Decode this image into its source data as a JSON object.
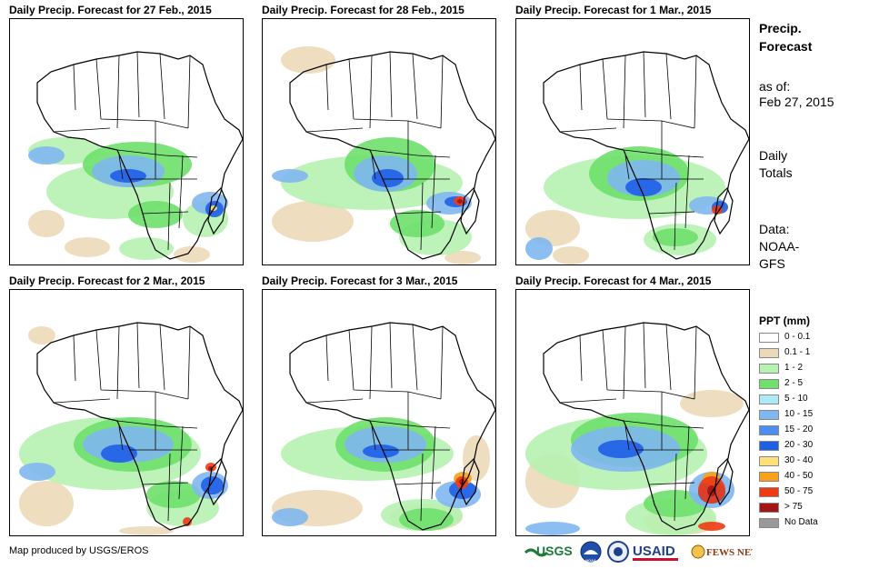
{
  "panels": [
    {
      "title": "Daily Precip. Forecast for 27 Feb., 2015"
    },
    {
      "title": "Daily Precip. Forecast for 28 Feb., 2015"
    },
    {
      "title": "Daily Precip. Forecast for 1 Mar., 2015"
    },
    {
      "title": "Daily Precip. Forecast for 2 Mar., 2015"
    },
    {
      "title": "Daily Precip. Forecast for 3 Mar., 2015"
    },
    {
      "title": "Daily Precip. Forecast for 4 Mar., 2015"
    }
  ],
  "sidebar": {
    "title_line1": "Precip.",
    "title_line2": "Forecast",
    "asof_label": "as of:",
    "asof_date": "Feb 27, 2015",
    "totals_line1": "Daily",
    "totals_line2": "Totals",
    "data_label": "Data:",
    "data_line1": "NOAA-",
    "data_line2": "GFS"
  },
  "legend": {
    "title": "PPT (mm)",
    "items": [
      {
        "label": "0 - 0.1",
        "color": "#ffffff"
      },
      {
        "label": "0.1 - 1",
        "color": "#ecd9b8"
      },
      {
        "label": "1 - 2",
        "color": "#b6f2b0"
      },
      {
        "label": "2 - 5",
        "color": "#6ee06b"
      },
      {
        "label": "5 - 10",
        "color": "#aeeaf5"
      },
      {
        "label": "10 - 15",
        "color": "#7fb7f0"
      },
      {
        "label": "15 - 20",
        "color": "#4c8ff0"
      },
      {
        "label": "20 - 30",
        "color": "#1f5fe6"
      },
      {
        "label": "30 - 40",
        "color": "#fde07a"
      },
      {
        "label": "40 - 50",
        "color": "#f7a21a"
      },
      {
        "label": "50 - 75",
        "color": "#ee3b12"
      },
      {
        "label": "> 75",
        "color": "#a31515"
      },
      {
        "label": "No Data",
        "color": "#999999"
      }
    ]
  },
  "footer": {
    "credit": "Map produced by USGS/EROS",
    "logos": [
      "USGS",
      "NOAA",
      "USAID",
      "FEWS NET"
    ]
  }
}
